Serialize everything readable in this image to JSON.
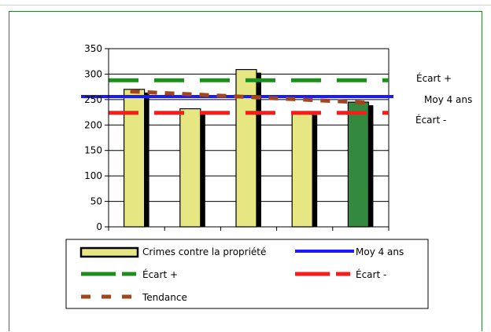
{
  "chart_data": {
    "type": "bar",
    "categories": [
      "",
      "",
      "",
      "",
      ""
    ],
    "series": [
      {
        "name": "Crimes contre la propriété",
        "values": [
          270,
          232,
          309,
          226,
          245
        ]
      }
    ],
    "highlight_index": 4,
    "reference_lines": {
      "moy": {
        "name": "Moy 4 ans",
        "value": 256,
        "color": "#1a1aff"
      },
      "ecart_plus": {
        "name": "Écart +",
        "value": 288,
        "color": "#1e8c1e"
      },
      "ecart_minus": {
        "name": "Écart -",
        "value": 224,
        "color": "#ff1a1a"
      }
    },
    "trend": {
      "name": "Tendance",
      "values": [
        266,
        261,
        256,
        250,
        244
      ],
      "color": "#a0461e"
    },
    "ylim": [
      0,
      350
    ],
    "yticks": [
      "0",
      "50",
      "100",
      "150",
      "200",
      "250",
      "300",
      "350"
    ],
    "title": "",
    "xlabel": "",
    "ylabel": "",
    "grid": true,
    "legend_position": "bottom",
    "colors": {
      "bar": "#e6e682",
      "bar_highlight": "#338a3e",
      "shadow": "#000000"
    }
  }
}
